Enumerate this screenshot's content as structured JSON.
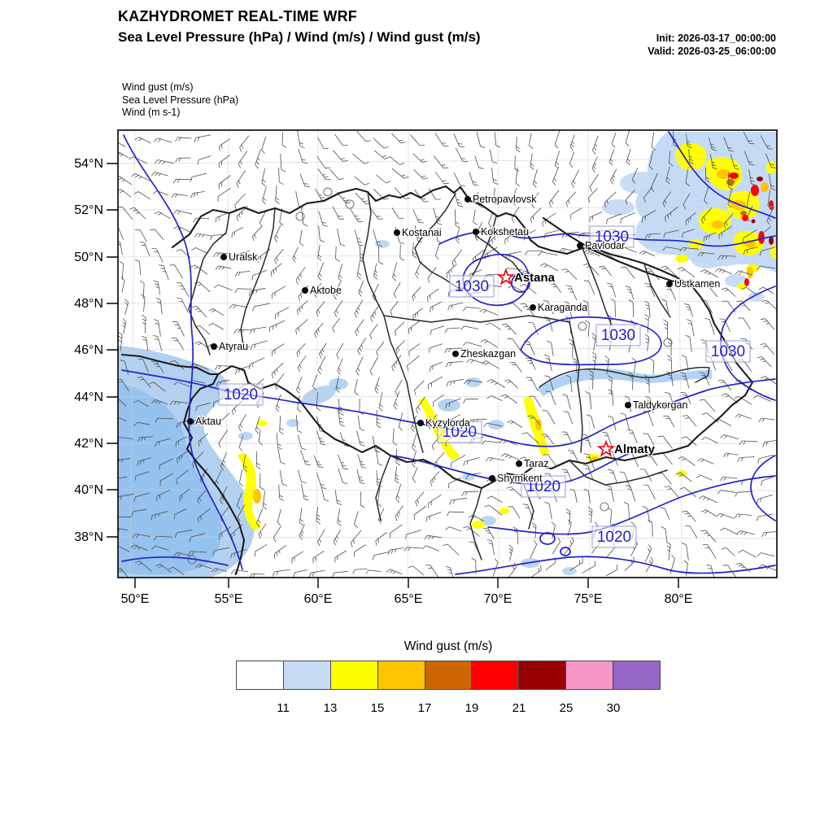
{
  "header": {
    "title": "KAZHYDROMET REAL-TIME WRF",
    "subtitle": "Sea Level Pressure  (hPa) / Wind  (m/s) / Wind gust  (m/s)",
    "init": "Init: 2026-03-17_00:00:00",
    "valid": "Valid: 2026-03-25_06:00:00"
  },
  "layers": {
    "line1": "Wind gust   (m/s)",
    "line2": "Sea Level Pressure   (hPa)",
    "line3": "Wind   (m s-1)"
  },
  "map": {
    "yticks": [
      "54°N",
      "52°N",
      "50°N",
      "48°N",
      "46°N",
      "44°N",
      "42°N",
      "40°N",
      "38°N"
    ],
    "xticks": [
      "50°E",
      "55°E",
      "60°E",
      "65°E",
      "70°E",
      "75°E",
      "80°E"
    ],
    "cities": [
      {
        "name": "Petropavlovsk"
      },
      {
        "name": "Kostanai"
      },
      {
        "name": "Kokshetau"
      },
      {
        "name": "Pavlodar"
      },
      {
        "name": "Uralsk"
      },
      {
        "name": "Aktobe"
      },
      {
        "name": "Ustkamen"
      },
      {
        "name": "Karaganda"
      },
      {
        "name": "Atyrau"
      },
      {
        "name": "Zheskazgan"
      },
      {
        "name": "Taldykorgan"
      },
      {
        "name": "Aktau"
      },
      {
        "name": "Kyzylorda"
      },
      {
        "name": "Taraz"
      },
      {
        "name": "Shymkent"
      }
    ],
    "capitals": [
      {
        "name": "Astana"
      },
      {
        "name": "Almaty"
      }
    ],
    "pressure_labels": [
      {
        "value": "1030"
      },
      {
        "value": "1030"
      },
      {
        "value": "1030"
      },
      {
        "value": "1030"
      },
      {
        "value": "1020"
      },
      {
        "value": "1020"
      },
      {
        "value": "1020"
      },
      {
        "value": "1020"
      }
    ],
    "isobar_color": "#2222cc",
    "capital_star_color": "#e81220"
  },
  "colorbar": {
    "title": "Wind gust (m/s)",
    "ticks": [
      "11",
      "13",
      "15",
      "17",
      "19",
      "21",
      "25",
      "30"
    ],
    "colors": [
      "#ffffff",
      "#c8dbf5",
      "#ffff00",
      "#ffc400",
      "#cc6600",
      "#ff0000",
      "#990000",
      "#fb96c8",
      "#9666c8"
    ]
  },
  "chart_data": {
    "type": "map",
    "title": "KAZHYDROMET REAL-TIME WRF",
    "variables": "Sea Level Pressure (hPa) / Wind (m/s) / Wind gust (m/s)",
    "x_axis": {
      "label": "longitude",
      "ticks": [
        "50°E",
        "55°E",
        "60°E",
        "65°E",
        "70°E",
        "75°E",
        "80°E"
      ]
    },
    "y_axis": {
      "label": "latitude",
      "ticks": [
        "54°N",
        "52°N",
        "50°N",
        "48°N",
        "46°N",
        "44°N",
        "42°N",
        "40°N",
        "38°N"
      ]
    },
    "colorbar": {
      "title": "Wind gust (m/s)",
      "bin_edges": [
        11,
        13,
        15,
        17,
        19,
        21,
        25,
        30
      ],
      "colors": [
        "#ffffff",
        "#c8dbf5",
        "#ffff00",
        "#ffc400",
        "#cc6600",
        "#ff0000",
        "#990000",
        "#fb96c8",
        "#9666c8"
      ]
    },
    "pressure_contour_labels_hPa": [
      1030,
      1030,
      1030,
      1030,
      1020,
      1020,
      1020,
      1020
    ],
    "cities": [
      "Petropavlovsk",
      "Kostanai",
      "Kokshetau",
      "Pavlodar",
      "Uralsk",
      "Aktobe",
      "Ustkamen",
      "Karaganda",
      "Atyrau",
      "Zheskazgan",
      "Taldykorgan",
      "Aktau",
      "Kyzylorda",
      "Taraz",
      "Shymkent",
      "Astana",
      "Almaty"
    ]
  }
}
